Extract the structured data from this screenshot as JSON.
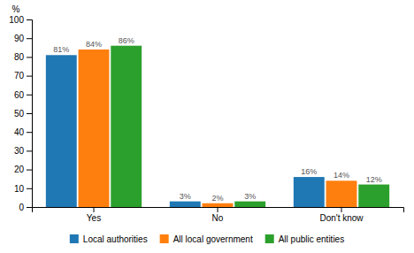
{
  "chart_data": {
    "type": "bar",
    "y_label": "%",
    "categories": [
      "Yes",
      "No",
      "Don't know"
    ],
    "series": [
      {
        "name": "Local authorities",
        "values": [
          81,
          3,
          16
        ],
        "value_labels": [
          "81%",
          "3%",
          "16%"
        ]
      },
      {
        "name": "All local government",
        "values": [
          84,
          2,
          14
        ],
        "value_labels": [
          "84%",
          "2%",
          "14%"
        ]
      },
      {
        "name": "All public entities",
        "values": [
          86,
          3,
          12
        ],
        "value_labels": [
          "86%",
          "3%",
          "12%"
        ]
      }
    ],
    "ylim": [
      0,
      100
    ],
    "yticks": [
      0,
      10,
      20,
      30,
      40,
      50,
      60,
      70,
      80,
      90,
      100
    ],
    "grid": false,
    "legend": "bottom",
    "data_labels": true
  }
}
